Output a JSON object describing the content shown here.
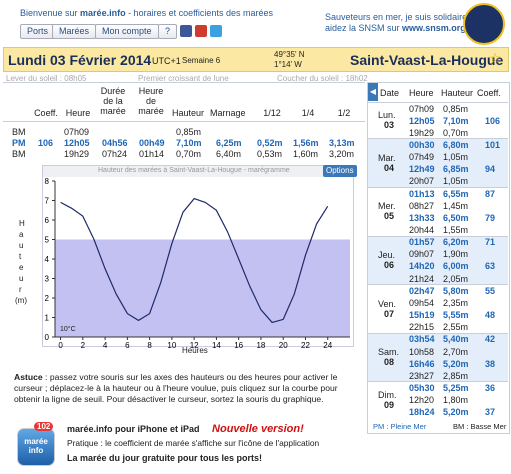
{
  "header": {
    "welcome_prefix": "Bienvenue sur ",
    "site": "marée.info",
    "welcome_suffix": " - horaires et coefficients des marées",
    "nav": [
      "Ports",
      "Marées",
      "Mon compte",
      "?"
    ],
    "snsm_line1": "Sauveteurs en mer, je suis solidaire",
    "snsm_line2_prefix": "aidez la SNSM sur ",
    "snsm_url": "www.snsm.org"
  },
  "day_bar": {
    "date": "Lundi 03 Février 2014",
    "utc": "UTC+1",
    "week": "Semaine 6",
    "lat": "49°35' N",
    "lon": "1°14' W",
    "port": "Saint-Vaast-La-Hougue"
  },
  "sun": {
    "sunrise": "Lever du soleil : 08h05",
    "moon": "Premier croissant de lune",
    "sunset": "Coucher du soleil : 18h02"
  },
  "tide_table": {
    "headers": [
      "Coeff.",
      "Heure",
      "Durée de la marée",
      "Heure de marée",
      "Hauteur",
      "Marnage",
      "1/12",
      "1/4",
      "1/2"
    ],
    "types": [
      "BM",
      "PM",
      "BM"
    ],
    "coeff": "106",
    "times": [
      "07h09",
      "12h05",
      "19h29"
    ],
    "durations": [
      "04h56",
      "07h24"
    ],
    "tide_hours": [
      "00h49",
      "01h14"
    ],
    "heights": [
      "0,85m",
      "7,10m",
      "0,70m"
    ],
    "ranges": [
      "6,25m",
      "6,40m"
    ],
    "twelfth": [
      "0,52m",
      "0,53m"
    ],
    "quarter": [
      "1,56m",
      "1,60m"
    ],
    "half": [
      "3,13m",
      "3,20m"
    ]
  },
  "chart_data": {
    "type": "line",
    "title": "Hauteur des marées à Saint-Vaast-La-Hougue - marégramme",
    "options_button": "Options",
    "y_label": "Hauteur",
    "y_unit": "(m)",
    "x_label": "Heures",
    "temperature": "10°C",
    "x": [
      0,
      1,
      2,
      3,
      4,
      5,
      6,
      7,
      8,
      9,
      10,
      11,
      12,
      13,
      14,
      15,
      16,
      17,
      18,
      19,
      20,
      21,
      22,
      23,
      24
    ],
    "values": [
      6.9,
      6.6,
      6.2,
      5.0,
      3.5,
      2.2,
      1.2,
      0.85,
      1.2,
      2.8,
      4.8,
      6.4,
      7.1,
      6.9,
      6.5,
      5.4,
      4.0,
      2.6,
      1.4,
      0.75,
      0.9,
      2.2,
      4.2,
      5.8,
      6.7
    ],
    "xlim": [
      -0.5,
      26
    ],
    "ylim": [
      0,
      8
    ],
    "xticks": [
      0,
      2,
      4,
      6,
      8,
      10,
      12,
      14,
      16,
      18,
      20,
      22,
      24
    ],
    "yticks": [
      0,
      1,
      2,
      3,
      4,
      5,
      6,
      7,
      8
    ],
    "threshold": 5,
    "color": "#1f2a6b",
    "threshold_color": "#b8b5f0"
  },
  "tide_list": {
    "headers": [
      "Date",
      "Heure",
      "Hauteur",
      "Coeff."
    ],
    "days": [
      {
        "day": "Lun.",
        "num": "03",
        "tides": [
          {
            "time": "07h09",
            "height": "0,85m",
            "pm": false
          },
          {
            "time": "12h05",
            "height": "7,10m",
            "pm": true,
            "coeff": "106"
          },
          {
            "time": "19h29",
            "height": "0,70m",
            "pm": false
          }
        ]
      },
      {
        "day": "Mar.",
        "num": "04",
        "tides": [
          {
            "time": "00h30",
            "height": "6,80m",
            "pm": true,
            "coeff": "101"
          },
          {
            "time": "07h49",
            "height": "1,05m",
            "pm": false
          },
          {
            "time": "12h49",
            "height": "6,85m",
            "pm": true,
            "coeff": "94"
          },
          {
            "time": "20h07",
            "height": "1,05m",
            "pm": false
          }
        ]
      },
      {
        "day": "Mer.",
        "num": "05",
        "tides": [
          {
            "time": "01h13",
            "height": "6,55m",
            "pm": true,
            "coeff": "87"
          },
          {
            "time": "08h27",
            "height": "1,45m",
            "pm": false
          },
          {
            "time": "13h33",
            "height": "6,50m",
            "pm": true,
            "coeff": "79"
          },
          {
            "time": "20h44",
            "height": "1,55m",
            "pm": false
          }
        ]
      },
      {
        "day": "Jeu.",
        "num": "06",
        "tides": [
          {
            "time": "01h57",
            "height": "6,20m",
            "pm": true,
            "coeff": "71"
          },
          {
            "time": "09h07",
            "height": "1,90m",
            "pm": false
          },
          {
            "time": "14h20",
            "height": "6,00m",
            "pm": true,
            "coeff": "63"
          },
          {
            "time": "21h24",
            "height": "2,05m",
            "pm": false
          }
        ]
      },
      {
        "day": "Ven.",
        "num": "07",
        "tides": [
          {
            "time": "02h47",
            "height": "5,80m",
            "pm": true,
            "coeff": "55"
          },
          {
            "time": "09h54",
            "height": "2,35m",
            "pm": false
          },
          {
            "time": "15h19",
            "height": "5,55m",
            "pm": true,
            "coeff": "48"
          },
          {
            "time": "22h15",
            "height": "2,55m",
            "pm": false
          }
        ]
      },
      {
        "day": "Sam.",
        "num": "08",
        "tides": [
          {
            "time": "03h54",
            "height": "5,40m",
            "pm": true,
            "coeff": "42"
          },
          {
            "time": "10h58",
            "height": "2,70m",
            "pm": false
          },
          {
            "time": "16h46",
            "height": "5,20m",
            "pm": true,
            "coeff": "38"
          },
          {
            "time": "23h27",
            "height": "2,85m",
            "pm": false
          }
        ]
      },
      {
        "day": "Dim.",
        "num": "09",
        "tides": [
          {
            "time": "05h30",
            "height": "5,25m",
            "pm": true,
            "coeff": "36"
          },
          {
            "time": "12h20",
            "height": "1,80m",
            "pm": false
          },
          {
            "time": "18h24",
            "height": "5,20m",
            "pm": true,
            "coeff": "37"
          }
        ]
      }
    ],
    "legend_pm": "PM : Pleine Mer",
    "legend_bm": "BM : Basse Mer"
  },
  "tip": {
    "title": "Astuce",
    "text": " : passez votre souris sur les axes des hauteurs ou des heures pour activer le curseur ; déplacez-le à la hauteur ou à l'heure voulue, puis cliquez sur la courbe pour obtenir la ligne de seuil. Pour désactiver le curseur, sortez la souris du graphique."
  },
  "app": {
    "badge": "102",
    "icon_name": "marée info",
    "title": "marée.info pour iPhone et iPad",
    "new": "Nouvelle version!",
    "text": "Pratique : le coefficient de marée s'affiche sur l'icône de l'application",
    "free": "La marée du jour gratuite pour tous les ports!"
  }
}
